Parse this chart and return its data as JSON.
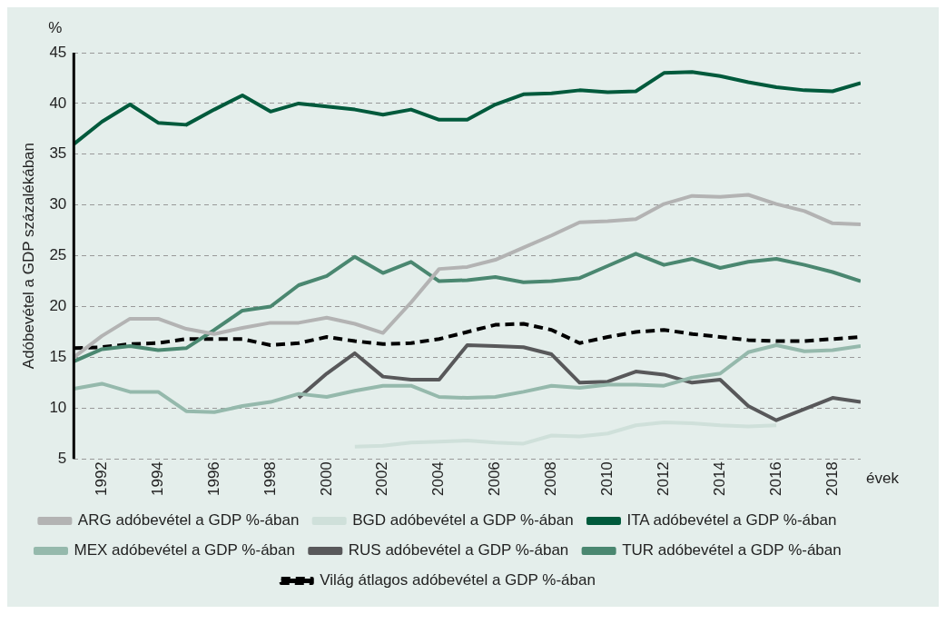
{
  "chart_data": {
    "type": "line",
    "ylabel": "Adóbevétel a GDP százalékában",
    "xlabel": "évek",
    "annotations": [
      "%"
    ],
    "x": [
      1991,
      1992,
      1993,
      1994,
      1995,
      1996,
      1997,
      1998,
      1999,
      2000,
      2001,
      2002,
      2003,
      2004,
      2005,
      2006,
      2007,
      2008,
      2009,
      2010,
      2011,
      2012,
      2013,
      2014,
      2015,
      2016,
      2017,
      2018,
      2019
    ],
    "xlim": [
      1991,
      2019
    ],
    "xticks": [
      1992,
      1994,
      1996,
      1998,
      2000,
      2002,
      2004,
      2006,
      2008,
      2010,
      2012,
      2014,
      2016,
      2018
    ],
    "ylim": [
      5,
      45
    ],
    "yticks": [
      5,
      10,
      15,
      20,
      25,
      30,
      35,
      40,
      45
    ],
    "grid": "y",
    "legend": "bottom",
    "marker": "none",
    "series": [
      {
        "name": "ARG adóbevétel a GDP %-ában",
        "color": "#b3b3b3",
        "values": [
          15.0,
          17.1,
          18.8,
          18.8,
          17.8,
          17.3,
          17.9,
          18.4,
          18.4,
          18.9,
          18.3,
          17.4,
          20.4,
          23.7,
          23.9,
          24.6,
          25.8,
          27.0,
          28.3,
          28.4,
          28.6,
          30.1,
          30.9,
          30.8,
          31.0,
          30.1,
          29.4,
          28.2,
          28.1
        ]
      },
      {
        "name": "BGD adóbevétel a GDP %-ában",
        "color": "#cfe0da",
        "values": [
          null,
          null,
          null,
          null,
          null,
          null,
          null,
          null,
          null,
          null,
          6.2,
          6.3,
          6.6,
          6.7,
          6.8,
          6.6,
          6.5,
          7.3,
          7.2,
          7.5,
          8.3,
          8.6,
          8.5,
          8.3,
          8.2,
          8.3,
          null,
          null,
          null
        ]
      },
      {
        "name": "ITA adóbevétel a GDP %-ában",
        "color": "#005a3c",
        "values": [
          36.0,
          38.2,
          39.9,
          38.1,
          37.9,
          39.4,
          40.8,
          39.2,
          40.0,
          39.7,
          39.4,
          38.9,
          39.4,
          38.4,
          38.4,
          39.9,
          40.9,
          41.0,
          41.3,
          41.1,
          41.2,
          43.0,
          43.1,
          42.7,
          42.1,
          41.6,
          41.3,
          41.2,
          42.0
        ]
      },
      {
        "name": "MEX adóbevétel a GDP %-ában",
        "color": "#95b9ac",
        "values": [
          11.9,
          12.4,
          11.6,
          11.6,
          9.7,
          9.6,
          10.2,
          10.6,
          11.4,
          11.1,
          11.7,
          12.2,
          12.2,
          11.1,
          11.0,
          11.1,
          11.6,
          12.2,
          12.0,
          12.3,
          12.3,
          12.2,
          13.0,
          13.4,
          15.5,
          16.2,
          15.6,
          15.7,
          16.1
        ]
      },
      {
        "name": "RUS adóbevétel a GDP %-ában",
        "color": "#58585a",
        "values": [
          null,
          null,
          null,
          null,
          null,
          null,
          null,
          null,
          11.0,
          13.4,
          15.4,
          13.1,
          12.8,
          12.8,
          16.2,
          16.1,
          16.0,
          15.3,
          12.5,
          12.6,
          13.6,
          13.3,
          12.5,
          12.8,
          10.2,
          8.8,
          9.9,
          11.0,
          10.6
        ]
      },
      {
        "name": "TUR adóbevétel a GDP %-ában",
        "color": "#4a8770",
        "values": [
          14.6,
          15.8,
          16.1,
          15.7,
          15.9,
          17.7,
          19.6,
          20.0,
          22.1,
          23.0,
          24.9,
          23.3,
          24.4,
          22.5,
          22.6,
          22.9,
          22.4,
          22.5,
          22.8,
          24.0,
          25.2,
          24.1,
          24.7,
          23.8,
          24.4,
          24.7,
          24.1,
          23.4,
          22.5
        ]
      },
      {
        "name": "Világ átlagos adóbevétel a GDP %-ában",
        "color": "#000000",
        "line_style": "dashed",
        "values": [
          15.9,
          16.0,
          16.3,
          16.4,
          16.8,
          16.8,
          16.8,
          16.2,
          16.4,
          17.0,
          16.6,
          16.3,
          16.4,
          16.8,
          17.5,
          18.2,
          18.3,
          17.7,
          16.4,
          17.0,
          17.5,
          17.7,
          17.3,
          17.0,
          16.7,
          16.6,
          16.6,
          16.8,
          17.0
        ]
      }
    ]
  }
}
